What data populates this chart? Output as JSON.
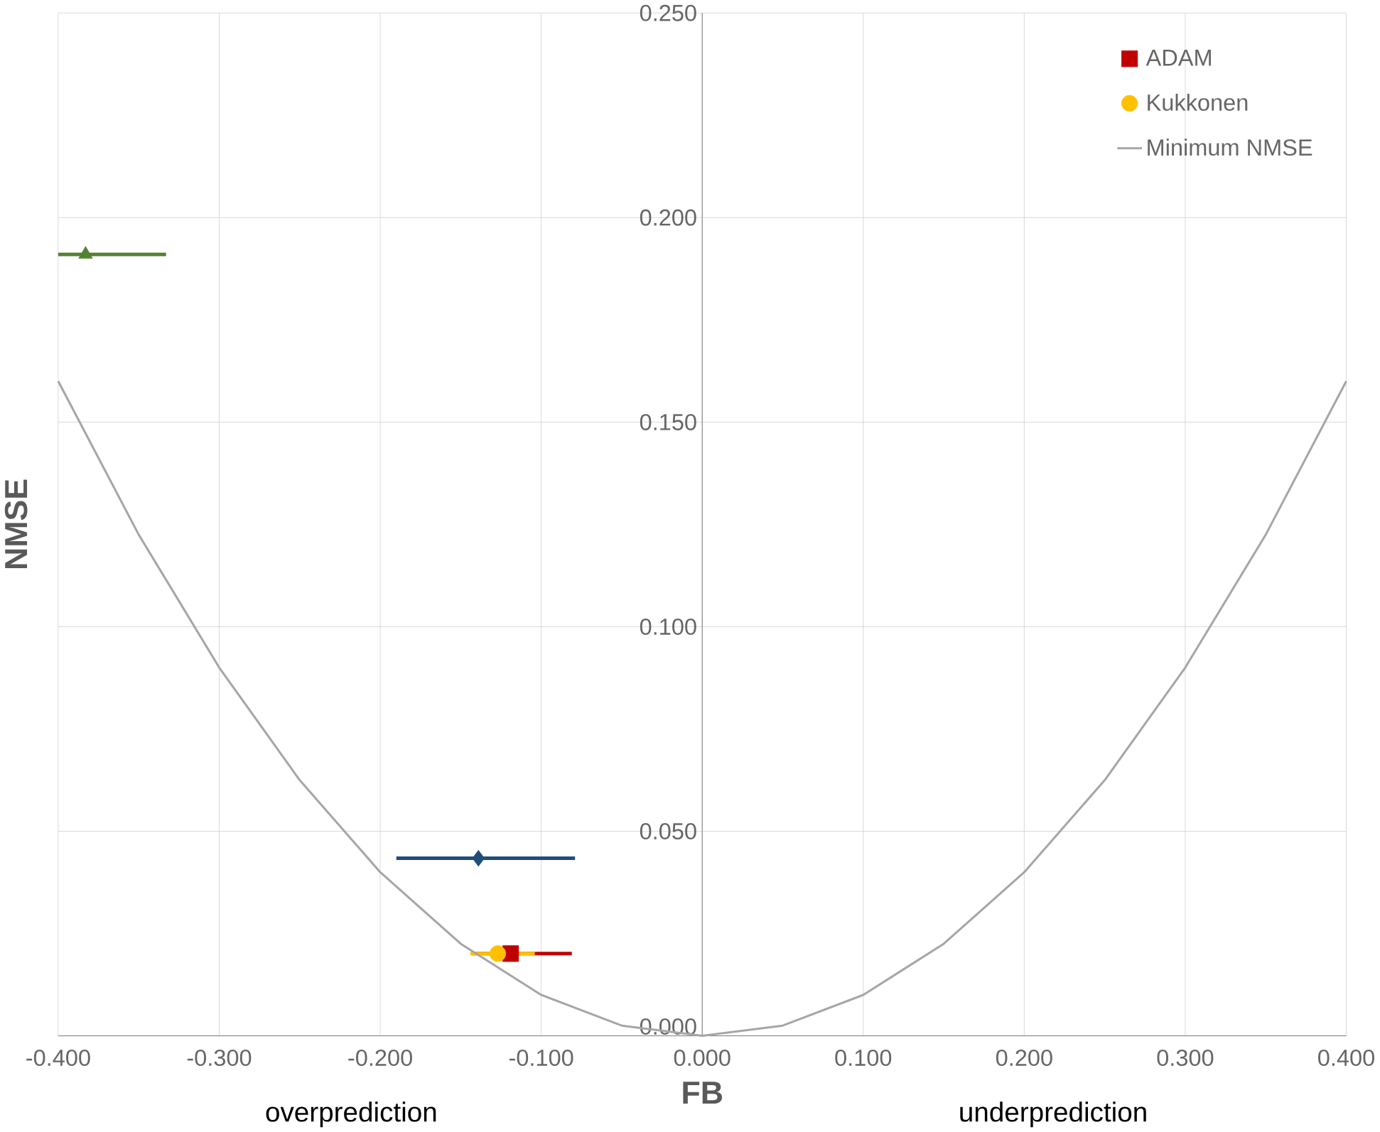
{
  "chart_data": {
    "type": "scatter",
    "xlabel": "FB",
    "ylabel": "NMSE",
    "annotations": [
      "overprediction",
      "underprediction"
    ],
    "series": [
      {
        "name": "ADAM",
        "color": "#c00000",
        "marker": "square",
        "x": [
          -0.119
        ],
        "values": [
          0.0201
        ],
        "xerrors": [
          [
            -0.143,
            -0.081
          ]
        ]
      },
      {
        "name": "Kukkonen",
        "color": "#ffc000",
        "marker": "circle",
        "x": [
          -0.127
        ],
        "values": [
          0.0201
        ],
        "xerrors": [
          [
            -0.144,
            -0.104
          ]
        ]
      },
      {
        "color": "#1f4e79",
        "marker": "diamond",
        "x": [
          -0.139
        ],
        "values": [
          0.0434
        ],
        "xerrors": [
          [
            -0.19,
            -0.079
          ]
        ]
      },
      {
        "color": "#548235",
        "marker": "triangle",
        "x": [
          -0.383
        ],
        "values": [
          0.191
        ],
        "xerrors": [
          [
            -0.4,
            -0.333
          ]
        ]
      },
      {
        "name": "Minimum NMSE",
        "type": "line",
        "color": "#a6a6a6",
        "marker": "none",
        "x": [
          -0.4,
          -0.35,
          -0.3,
          -0.25,
          -0.2,
          -0.15,
          -0.1,
          -0.05,
          0,
          0.05,
          0.1,
          0.15,
          0.2,
          0.25,
          0.3,
          0.35,
          0.4
        ],
        "values": [
          0.16,
          0.1225,
          0.09,
          0.0625,
          0.04,
          0.0225,
          0.01,
          0.0025,
          0,
          0.0025,
          0.01,
          0.0225,
          0.04,
          0.0625,
          0.09,
          0.1225,
          0.16
        ]
      }
    ],
    "xlim": [
      -0.4,
      0.4
    ],
    "ylim": [
      0,
      0.25
    ],
    "xticks": [
      {
        "value": -0.4,
        "label": "-0.400"
      },
      {
        "value": -0.3,
        "label": "-0.300"
      },
      {
        "value": -0.2,
        "label": "-0.200"
      },
      {
        "value": -0.1,
        "label": "-0.100"
      },
      {
        "value": 0,
        "label": "0.000"
      },
      {
        "value": 0.1,
        "label": "0.100"
      },
      {
        "value": 0.2,
        "label": "0.200"
      },
      {
        "value": 0.3,
        "label": "0.300"
      },
      {
        "value": 0.4,
        "label": "0.400"
      }
    ],
    "yticks": [
      {
        "value": 0,
        "label": "0.000"
      },
      {
        "value": 0.05,
        "label": "0.050"
      },
      {
        "value": 0.1,
        "label": "0.100"
      },
      {
        "value": 0.15,
        "label": "0.150"
      },
      {
        "value": 0.2,
        "label": "0.200"
      },
      {
        "value": 0.25,
        "label": "0.250"
      }
    ],
    "grid": true,
    "legend": "top right"
  }
}
